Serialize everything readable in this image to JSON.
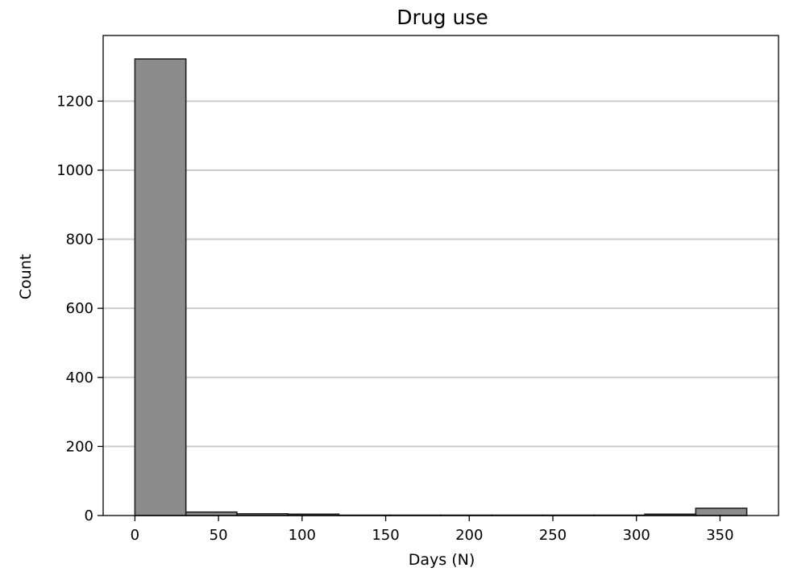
{
  "chart_data": {
    "type": "bar",
    "title": "Drug use",
    "xlabel": "Days (N)",
    "ylabel": "Count",
    "xlim": [
      -19,
      385
    ],
    "ylim": [
      0,
      1390
    ],
    "xticks": [
      0,
      50,
      100,
      150,
      200,
      250,
      300,
      350
    ],
    "yticks": [
      0,
      200,
      400,
      600,
      800,
      1000,
      1200
    ],
    "grid": "horizontal",
    "bins": [
      {
        "x0": 0,
        "x1": 30.5,
        "value": 1322
      },
      {
        "x0": 30.5,
        "x1": 61,
        "value": 10
      },
      {
        "x0": 61,
        "x1": 91.5,
        "value": 5
      },
      {
        "x0": 91.5,
        "x1": 122,
        "value": 4
      },
      {
        "x0": 122,
        "x1": 152.5,
        "value": 1
      },
      {
        "x0": 152.5,
        "x1": 183,
        "value": 1
      },
      {
        "x0": 183,
        "x1": 213.5,
        "value": 1
      },
      {
        "x0": 213.5,
        "x1": 244,
        "value": 1
      },
      {
        "x0": 244,
        "x1": 274.5,
        "value": 1
      },
      {
        "x0": 274.5,
        "x1": 305,
        "value": 1
      },
      {
        "x0": 305,
        "x1": 335.5,
        "value": 4
      },
      {
        "x0": 335.5,
        "x1": 366,
        "value": 21
      }
    ],
    "colors": {
      "bar_fill": "#8c8c8c",
      "bar_edge": "#222222",
      "grid": "#cccccc"
    }
  }
}
